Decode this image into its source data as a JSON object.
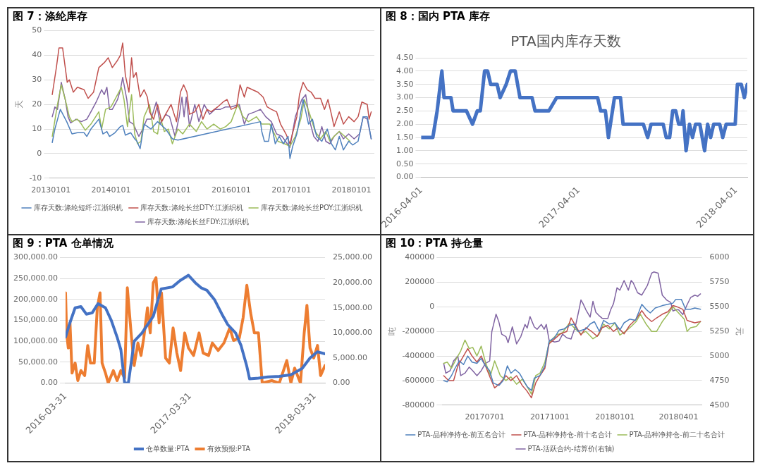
{
  "chart_data": [
    {
      "type": "line",
      "title": "图 7：涤纶库存",
      "ylabel": "天",
      "xlim": [
        "2012-12-24",
        "2018-05-20"
      ],
      "ylim": [
        -10,
        50
      ],
      "yticks": [
        -10,
        0,
        10,
        20,
        30,
        40,
        50
      ],
      "xticks": [
        {
          "value": "2013-01-01",
          "label": "20130101"
        },
        {
          "value": "2014-01-01",
          "label": "20140101"
        },
        {
          "value": "2015-01-01",
          "label": "20150101"
        },
        {
          "value": "2016-01-01",
          "label": "20160101"
        },
        {
          "value": "2017-01-01",
          "label": "20170101"
        },
        {
          "value": "2018-01-01",
          "label": "20180101"
        }
      ],
      "grid": "y",
      "legend": "bottom",
      "marker": "none",
      "line_style": "solid",
      "series": [
        {
          "name": "库存天数:涤纶短纤:江浙织机",
          "color": "#4f81bd",
          "x": [
            "2013-01-09",
            "2013-01-25",
            "2013-02-27",
            "2013-04-07",
            "2013-05-09",
            "2013-06-11",
            "2013-07-21",
            "2013-08-07",
            "2013-09-01",
            "2013-10-19",
            "2013-11-13",
            "2013-12-07",
            "2013-12-23",
            "2014-01-25",
            "2014-02-27",
            "2014-03-13",
            "2014-03-29",
            "2014-05-01",
            "2014-05-25",
            "2014-06-08",
            "2014-06-27",
            "2014-07-21",
            "2014-09-01",
            "2014-10-11",
            "2014-11-29",
            "2015-01-09",
            "2015-02-11",
            "2016-06-27",
            "2016-07-05",
            "2016-07-21",
            "2016-08-15",
            "2016-09-01",
            "2016-09-25",
            "2016-10-19",
            "2016-11-13",
            "2016-12-12",
            "2016-12-23",
            "2017-01-09",
            "2017-02-03",
            "2017-03-13",
            "2017-04-15",
            "2017-05-09",
            "2017-06-03",
            "2017-07-05",
            "2017-08-07",
            "2017-09-01",
            "2017-09-25",
            "2017-10-19",
            "2017-11-13",
            "2017-12-15",
            "2018-01-09",
            "2018-02-10",
            "2018-03-13",
            "2018-04-07",
            "2018-05-01"
          ],
          "values": [
            4.5,
            10,
            18,
            13,
            8,
            8.5,
            8.5,
            7,
            10,
            14,
            8,
            9,
            7,
            8.5,
            11,
            11.5,
            7.5,
            8.5,
            6,
            5,
            2,
            12,
            10,
            13,
            10,
            6,
            5.5,
            13,
            9,
            5,
            5,
            12,
            4,
            7,
            4,
            7,
            -2,
            3,
            8,
            22,
            12,
            14,
            7,
            5,
            10,
            4,
            1.5,
            7,
            1.5,
            5,
            3.5,
            5,
            15,
            15,
            6
          ]
        },
        {
          "name": "库存天数:涤纶长丝DTY:江浙织机",
          "color": "#c0504d",
          "x": [
            "2013-01-09",
            "2013-02-03",
            "2013-02-19",
            "2013-03-13",
            "2013-03-29",
            "2013-04-10",
            "2013-04-23",
            "2013-05-17",
            "2013-06-11",
            "2013-07-21",
            "2013-08-15",
            "2013-09-17",
            "2013-10-19",
            "2013-11-21",
            "2013-12-15",
            "2014-01-09",
            "2014-02-10",
            "2014-02-27",
            "2014-03-13",
            "2014-03-29",
            "2014-04-20",
            "2014-05-06",
            "2014-05-17",
            "2014-06-03",
            "2014-06-27",
            "2014-07-21",
            "2014-08-10",
            "2014-08-23",
            "2014-09-17",
            "2014-10-11",
            "2014-11-05",
            "2014-11-29",
            "2015-01-01",
            "2015-02-03",
            "2015-02-27",
            "2015-03-18",
            "2015-04-07",
            "2015-04-23",
            "2015-05-25",
            "2015-06-19",
            "2015-07-13",
            "2015-08-07",
            "2015-09-01",
            "2015-10-11",
            "2015-11-13",
            "2015-12-07",
            "2016-01-01",
            "2016-02-03",
            "2016-02-24",
            "2016-03-21",
            "2016-04-07",
            "2016-05-09",
            "2016-06-11",
            "2016-07-13",
            "2016-08-07",
            "2016-09-01",
            "2016-10-03",
            "2016-10-27",
            "2016-11-29",
            "2016-12-23",
            "2017-02-03",
            "2017-02-19",
            "2017-03-13",
            "2017-04-07",
            "2017-05-01",
            "2017-05-25",
            "2017-06-27",
            "2017-07-21",
            "2017-08-11",
            "2017-09-01",
            "2017-09-17",
            "2017-10-19",
            "2017-11-13",
            "2017-12-15",
            "2018-01-17",
            "2018-02-10",
            "2018-03-05",
            "2018-04-07",
            "2018-04-18",
            "2018-05-01"
          ],
          "values": [
            24,
            35,
            43,
            43,
            35,
            29,
            30,
            25,
            27,
            26,
            22.5,
            25,
            35,
            37,
            39,
            35,
            38,
            40,
            45,
            32,
            25,
            39,
            31,
            33,
            23,
            26,
            23,
            17,
            14,
            20,
            13,
            16,
            20,
            13,
            25,
            28,
            25,
            16,
            17,
            20,
            14,
            18,
            17,
            19,
            21,
            22,
            18,
            19,
            28,
            23,
            27,
            26,
            25,
            23,
            19,
            18,
            17,
            12,
            8,
            4,
            15,
            24,
            29,
            26,
            25,
            22.5,
            22.5,
            18,
            22,
            16,
            11,
            17,
            12,
            15,
            13,
            15,
            21,
            20,
            14,
            17
          ]
        },
        {
          "name": "库存天数:涤纶长丝POY:江浙织机",
          "color": "#9bbb59",
          "x": [
            "2013-01-09",
            "2013-02-10",
            "2013-03-05",
            "2013-03-29",
            "2013-04-23",
            "2013-05-09",
            "2013-06-11",
            "2013-07-05",
            "2013-07-29",
            "2013-09-01",
            "2013-10-19",
            "2013-11-05",
            "2013-11-29",
            "2014-01-01",
            "2014-01-25",
            "2014-03-05",
            "2014-03-21",
            "2014-04-11",
            "2014-05-06",
            "2014-05-25",
            "2014-06-11",
            "2014-07-02",
            "2014-07-21",
            "2014-08-23",
            "2014-09-17",
            "2014-10-11",
            "2014-10-27",
            "2014-11-21",
            "2014-12-15",
            "2015-01-09",
            "2015-02-11",
            "2015-03-13",
            "2015-04-23",
            "2015-06-03",
            "2015-07-05",
            "2015-08-07",
            "2015-09-17",
            "2015-10-27",
            "2015-11-29",
            "2016-01-01",
            "2016-02-10",
            "2016-03-13",
            "2016-04-15",
            "2016-06-03",
            "2016-07-05",
            "2016-08-23",
            "2016-10-11",
            "2016-11-21",
            "2016-12-23",
            "2017-01-25",
            "2017-02-27",
            "2017-03-21",
            "2017-04-23",
            "2017-05-25",
            "2017-06-27",
            "2017-07-29",
            "2017-08-23",
            "2017-09-17",
            "2017-10-19",
            "2017-11-21",
            "2017-12-23"
          ],
          "values": [
            7,
            20,
            28,
            22,
            15,
            13,
            14,
            12,
            9.5,
            12,
            17,
            10,
            18,
            19,
            22,
            27,
            22,
            11,
            24,
            8,
            4,
            5,
            15,
            20,
            9,
            8,
            15,
            9,
            10,
            4,
            10,
            8,
            12,
            9,
            13,
            10,
            12,
            10,
            11,
            13,
            20,
            15,
            13,
            15,
            12,
            12,
            5,
            4,
            3,
            7,
            14,
            22,
            16,
            9,
            6,
            9,
            5,
            7,
            9,
            7,
            5
          ]
        },
        {
          "name": "库存天数:涤纶长丝FDY:江浙织机",
          "color": "#8064a2",
          "x": [
            "2013-01-09",
            "2013-01-25",
            "2013-02-10",
            "2013-03-05",
            "2013-03-29",
            "2013-04-15",
            "2013-05-01",
            "2013-06-03",
            "2013-07-05",
            "2013-08-07",
            "2013-09-01",
            "2013-10-03",
            "2013-11-05",
            "2013-11-21",
            "2013-12-07",
            "2013-12-23",
            "2014-01-09",
            "2014-02-10",
            "2014-02-27",
            "2014-03-13",
            "2014-04-07",
            "2014-04-23",
            "2014-05-17",
            "2014-06-19",
            "2014-07-13",
            "2014-08-07",
            "2014-09-01",
            "2014-10-03",
            "2014-10-27",
            "2014-11-29",
            "2014-12-23",
            "2015-01-25",
            "2015-02-19",
            "2015-03-08",
            "2015-03-21",
            "2015-04-03",
            "2015-04-23",
            "2015-05-25",
            "2015-06-19",
            "2015-07-21",
            "2015-08-23",
            "2015-09-25",
            "2015-10-27",
            "2015-11-29",
            "2016-01-01",
            "2016-02-19",
            "2016-03-21",
            "2016-04-15",
            "2016-05-25",
            "2016-06-27",
            "2016-07-29",
            "2016-09-01",
            "2016-10-03",
            "2016-11-05",
            "2016-12-23",
            "2017-01-25",
            "2017-03-05",
            "2017-03-29",
            "2017-04-23",
            "2017-05-17",
            "2017-06-11",
            "2017-07-05",
            "2017-07-29",
            "2017-08-23",
            "2017-09-17",
            "2017-10-19",
            "2017-11-13",
            "2017-12-15",
            "2018-01-17",
            "2018-02-19",
            "2018-03-13",
            "2018-04-07",
            "2018-05-01"
          ],
          "values": [
            15,
            19,
            18,
            29,
            22,
            15,
            12.5,
            14,
            13,
            14,
            17,
            21,
            26,
            24,
            27,
            18,
            18,
            22,
            26,
            31,
            22,
            13,
            12,
            7,
            10,
            14,
            14,
            21,
            12,
            16,
            15,
            7,
            15,
            23,
            15,
            23,
            11,
            20,
            13,
            20,
            16,
            18,
            18,
            19,
            19,
            20,
            12,
            16,
            17,
            18,
            15,
            13,
            8,
            7,
            2.5,
            15,
            22,
            24,
            13,
            7,
            5,
            11,
            5,
            4,
            7,
            9,
            6,
            8,
            6,
            8,
            15,
            14,
            6
          ]
        }
      ]
    },
    {
      "type": "line",
      "title": "图 8：国内 PTA 库存",
      "subtitle": "PTA国内库存天数",
      "xlim": [
        "2016-04-01",
        "2018-04-27"
      ],
      "ylim": [
        0,
        4.5
      ],
      "xticks": [
        {
          "value": "2016-04-01",
          "label": "2016-04-01"
        },
        {
          "value": "2017-04-01",
          "label": "2017-04-01"
        },
        {
          "value": "2018-04-01",
          "label": "2018-04-01"
        }
      ],
      "yticks": [
        {
          "value": 0,
          "label": "0.00"
        },
        {
          "value": 0.5,
          "label": "0.50"
        },
        {
          "value": 1,
          "label": "1.00"
        },
        {
          "value": 1.5,
          "label": "1.50"
        },
        {
          "value": 2,
          "label": "2.00"
        },
        {
          "value": 2.5,
          "label": "2.50"
        },
        {
          "value": 3,
          "label": "3.00"
        },
        {
          "value": 3.5,
          "label": "3.50"
        },
        {
          "value": 4,
          "label": "4.00"
        },
        {
          "value": 4.5,
          "label": "4.50"
        }
      ],
      "grid": "y",
      "legend": false,
      "marker": "none",
      "line_style": "solid",
      "series": [
        {
          "color": "#4472c4",
          "x": [
            "2016-04-01",
            "2016-04-28",
            "2016-05-08",
            "2016-05-19",
            "2016-05-24",
            "2016-06-09",
            "2016-06-14",
            "2016-07-15",
            "2016-07-29",
            "2016-08-09",
            "2016-08-16",
            "2016-08-26",
            "2016-09-02",
            "2016-09-09",
            "2016-09-24",
            "2016-10-01",
            "2016-10-15",
            "2016-10-25",
            "2016-11-05",
            "2016-11-16",
            "2016-12-14",
            "2016-12-21",
            "2017-01-22",
            "2017-02-09",
            "2017-05-15",
            "2017-05-22",
            "2017-06-02",
            "2017-06-09",
            "2017-06-23",
            "2017-07-07",
            "2017-07-13",
            "2017-08-29",
            "2017-09-08",
            "2017-09-16",
            "2017-10-14",
            "2017-10-21",
            "2017-10-29",
            "2017-11-05",
            "2017-11-12",
            "2017-11-19",
            "2017-11-26",
            "2017-11-29",
            "2017-12-06",
            "2017-12-14",
            "2017-12-21",
            "2017-12-28",
            "2018-01-07",
            "2018-01-18",
            "2018-01-25",
            "2018-02-01",
            "2018-02-08",
            "2018-02-22",
            "2018-03-01",
            "2018-03-09",
            "2018-03-30",
            "2018-04-04",
            "2018-04-13",
            "2018-04-20",
            "2018-04-27"
          ],
          "values": [
            1.5,
            1.5,
            2.5,
            4,
            3,
            3,
            2.5,
            2.5,
            2,
            2.5,
            2.5,
            4,
            4,
            3.5,
            3.5,
            3,
            3.5,
            4,
            4,
            3,
            3,
            2.5,
            2.5,
            3,
            3,
            2.5,
            2.5,
            1.5,
            3,
            3,
            2,
            2,
            1.5,
            2,
            2,
            1.5,
            1.5,
            2.5,
            2.5,
            2,
            2,
            2.5,
            1,
            2,
            1.5,
            2,
            2,
            1,
            2,
            1.5,
            2,
            2,
            1.5,
            2,
            2,
            3.5,
            3.5,
            3,
            3.5
          ]
        }
      ]
    },
    {
      "type": "line",
      "title": "图 9：PTA 仓单情况",
      "xlim": [
        "2016-03-31",
        "2018-04-30"
      ],
      "ylim": [
        0,
        300000
      ],
      "y2lim": [
        0,
        25000
      ],
      "xticks": [
        {
          "value": "2016-03-31",
          "label": "2016-03-31"
        },
        {
          "value": "2017-03-31",
          "label": "2017-03-31"
        },
        {
          "value": "2018-03-31",
          "label": "2018-03-31"
        }
      ],
      "yticks": [
        {
          "value": 0,
          "label": "0.00"
        },
        {
          "value": 50000,
          "label": "50,000.00"
        },
        {
          "value": 100000,
          "label": "100,000.00"
        },
        {
          "value": 150000,
          "label": "150,000.00"
        },
        {
          "value": 200000,
          "label": "200,000.00"
        },
        {
          "value": 250000,
          "label": "250,000.00"
        },
        {
          "value": 300000,
          "label": "300,000.00"
        }
      ],
      "y2ticks": [
        {
          "value": 0,
          "label": "0.00"
        },
        {
          "value": 5000,
          "label": "5,000.00"
        },
        {
          "value": 10000,
          "label": "10,000.00"
        },
        {
          "value": 15000,
          "label": "15,000.00"
        },
        {
          "value": 20000,
          "label": "20,000.00"
        },
        {
          "value": 25000,
          "label": "25,000.00"
        }
      ],
      "grid": "y",
      "legend": "bottom",
      "marker": "none",
      "line_style": "solid",
      "series": [
        {
          "name": "仓单数量:PTA",
          "color": "#4472c4",
          "x": [
            "2016-03-31",
            "2016-04-11",
            "2016-04-28",
            "2016-05-15",
            "2016-05-31",
            "2016-06-17",
            "2016-07-04",
            "2016-07-26",
            "2016-08-12",
            "2016-08-29",
            "2016-09-09",
            "2016-09-20",
            "2016-10-01",
            "2016-10-18",
            "2016-11-10",
            "2016-12-13",
            "2017-01-05",
            "2017-02-07",
            "2017-03-01",
            "2017-03-26",
            "2017-04-15",
            "2017-05-02",
            "2017-05-19",
            "2017-06-10",
            "2017-07-02",
            "2017-07-19",
            "2017-08-11",
            "2017-08-27",
            "2017-09-13",
            "2017-09-21",
            "2017-10-17",
            "2017-11-14",
            "2017-12-17",
            "2018-01-20",
            "2018-02-22",
            "2018-03-17",
            "2018-04-08",
            "2018-04-30"
          ],
          "values": [
            110000,
            140000,
            180000,
            183000,
            165000,
            168000,
            190000,
            180000,
            150000,
            110000,
            80000,
            0,
            0,
            100000,
            120000,
            160000,
            225000,
            230000,
            245000,
            258000,
            240000,
            228000,
            222000,
            200000,
            165000,
            140000,
            120000,
            90000,
            40000,
            10000,
            12000,
            15000,
            16000,
            20000,
            35000,
            60000,
            75000,
            70000
          ]
        },
        {
          "name": "有效预报:PTA",
          "color": "#ed7d31",
          "axis": "y2",
          "x": [
            "2016-03-31",
            "2016-04-03",
            "2016-04-08",
            "2016-04-13",
            "2016-04-19",
            "2016-04-28",
            "2016-05-06",
            "2016-05-15",
            "2016-05-26",
            "2016-06-04",
            "2016-06-12",
            "2016-06-23",
            "2016-07-02",
            "2016-07-10",
            "2016-07-16",
            "2016-07-26",
            "2016-08-03",
            "2016-08-18",
            "2016-08-29",
            "2016-09-09",
            "2016-09-20",
            "2016-09-28",
            "2016-10-09",
            "2016-10-18",
            "2016-10-29",
            "2016-11-07",
            "2016-11-15",
            "2016-11-26",
            "2016-12-04",
            "2016-12-13",
            "2016-12-21",
            "2016-12-30",
            "2017-01-06",
            "2017-01-18",
            "2017-01-29",
            "2017-02-09",
            "2017-02-20",
            "2017-03-03",
            "2017-03-15",
            "2017-03-26",
            "2017-04-10",
            "2017-04-26",
            "2017-05-08",
            "2017-05-24",
            "2017-06-04",
            "2017-06-21",
            "2017-07-08",
            "2017-07-25",
            "2017-08-05",
            "2017-08-22",
            "2017-09-02",
            "2017-09-13",
            "2017-09-24",
            "2017-10-05",
            "2017-10-17",
            "2017-10-28",
            "2017-11-25",
            "2017-12-17",
            "2018-01-08",
            "2018-01-20",
            "2018-01-31",
            "2018-02-17",
            "2018-02-28",
            "2018-03-08",
            "2018-03-17",
            "2018-03-28",
            "2018-04-08",
            "2018-04-17",
            "2018-04-30"
          ],
          "values": [
            18000,
            10000,
            7000,
            12000,
            2000,
            4000,
            500,
            2500,
            1500,
            7500,
            4000,
            4000,
            15000,
            18000,
            4000,
            2000,
            0,
            2500,
            500,
            2500,
            1000,
            19000,
            10000,
            3500,
            8000,
            5500,
            9000,
            15000,
            10000,
            20000,
            21000,
            12000,
            18000,
            5000,
            4000,
            11000,
            6000,
            2500,
            10000,
            7000,
            5500,
            10000,
            6000,
            5500,
            8000,
            6500,
            8000,
            11000,
            8500,
            9000,
            13000,
            19500,
            14000,
            10000,
            10000,
            0,
            500,
            0,
            4500,
            0,
            3000,
            0,
            10000,
            15500,
            7000,
            5000,
            7500,
            1500,
            3500
          ]
        }
      ]
    },
    {
      "type": "line",
      "title": "图 10：PTA 持仓量",
      "ylabel": "吨",
      "y2label": "元",
      "xlim": [
        "2017-05-02",
        "2018-05-04"
      ],
      "ylim": [
        -800000,
        400000
      ],
      "y2lim": [
        4500,
        6000
      ],
      "xticks": [
        {
          "value": "2017-07-01",
          "label": "20170701"
        },
        {
          "value": "2017-10-01",
          "label": "20171001"
        },
        {
          "value": "2018-01-01",
          "label": "20180101"
        },
        {
          "value": "2018-04-01",
          "label": "20180401"
        }
      ],
      "yticks": [
        -800000,
        -600000,
        -400000,
        -200000,
        0,
        200000,
        400000
      ],
      "y2ticks": [
        4500,
        4750,
        5000,
        5250,
        5500,
        5750,
        6000
      ],
      "grid": "y",
      "legend": "bottom",
      "marker": "none",
      "line_style": "solid",
      "series": [
        {
          "name": "PTA-品种净持仓-前五名合计",
          "color": "#4f81bd",
          "x": [
            "2017-05-04",
            "2017-05-09",
            "2017-05-15",
            "2017-05-20",
            "2017-05-26",
            "2017-06-01",
            "2017-06-07",
            "2017-06-13",
            "2017-06-20",
            "2017-06-26",
            "2017-07-02",
            "2017-07-08",
            "2017-07-13",
            "2017-07-21",
            "2017-07-27",
            "2017-08-02",
            "2017-08-07",
            "2017-08-13",
            "2017-08-19",
            "2017-08-25",
            "2017-08-30",
            "2017-09-05",
            "2017-09-09",
            "2017-09-17",
            "2017-09-24",
            "2017-09-30",
            "2017-10-08",
            "2017-10-14",
            "2017-10-21",
            "2017-10-29",
            "2017-11-04",
            "2017-11-10",
            "2017-11-15",
            "2017-11-21",
            "2017-11-27",
            "2017-12-03",
            "2017-12-10",
            "2017-12-16",
            "2017-12-24",
            "2018-01-01",
            "2018-01-08",
            "2018-01-14",
            "2018-01-22",
            "2018-01-30",
            "2018-02-04",
            "2018-02-08",
            "2018-02-14",
            "2018-02-20",
            "2018-02-27",
            "2018-03-09",
            "2018-03-17",
            "2018-03-24",
            "2018-03-28",
            "2018-04-05",
            "2018-04-11",
            "2018-04-18",
            "2018-04-24",
            "2018-05-02"
          ],
          "values": [
            -600000,
            -610000,
            -560000,
            -500000,
            -440000,
            -470000,
            -400000,
            -450000,
            -460000,
            -420000,
            -480000,
            -520000,
            -620000,
            -640000,
            -600000,
            -480000,
            -540000,
            -510000,
            -540000,
            -600000,
            -650000,
            -680000,
            -580000,
            -560000,
            -480000,
            -280000,
            -250000,
            -190000,
            -180000,
            -150000,
            -140000,
            -200000,
            -190000,
            -180000,
            -140000,
            -120000,
            -200000,
            -110000,
            -140000,
            -130000,
            -190000,
            -130000,
            -100000,
            -110000,
            -40000,
            20000,
            -20000,
            -50000,
            -10000,
            10000,
            20000,
            30000,
            60000,
            60000,
            -20000,
            -20000,
            -10000,
            -20000
          ]
        },
        {
          "name": "PTA-品种净持仓-前十名合计",
          "color": "#c0504d",
          "x": [
            "2017-05-04",
            "2017-05-11",
            "2017-05-18",
            "2017-05-24",
            "2017-06-01",
            "2017-06-07",
            "2017-06-13",
            "2017-06-20",
            "2017-06-26",
            "2017-07-02",
            "2017-07-09",
            "2017-07-15",
            "2017-07-23",
            "2017-07-31",
            "2017-08-07",
            "2017-08-15",
            "2017-08-23",
            "2017-08-29",
            "2017-09-05",
            "2017-09-11",
            "2017-09-17",
            "2017-09-24",
            "2017-09-30",
            "2017-10-08",
            "2017-10-16",
            "2017-10-25",
            "2017-10-31",
            "2017-11-06",
            "2017-11-14",
            "2017-11-21",
            "2017-11-29",
            "2017-12-07",
            "2017-12-14",
            "2017-12-22",
            "2017-12-30",
            "2018-01-06",
            "2018-01-14",
            "2018-01-22",
            "2018-01-31",
            "2018-02-08",
            "2018-02-14",
            "2018-02-22",
            "2018-03-01",
            "2018-03-09",
            "2018-03-17",
            "2018-03-24",
            "2018-03-30",
            "2018-04-07",
            "2018-04-13",
            "2018-04-18",
            "2018-04-24",
            "2018-05-02"
          ],
          "values": [
            -560000,
            -600000,
            -600000,
            -480000,
            -400000,
            -340000,
            -400000,
            -450000,
            -400000,
            -480000,
            -580000,
            -660000,
            -620000,
            -560000,
            -600000,
            -560000,
            -640000,
            -680000,
            -740000,
            -620000,
            -560000,
            -500000,
            -300000,
            -260000,
            -220000,
            -200000,
            -90000,
            -150000,
            -230000,
            -170000,
            -200000,
            -240000,
            -170000,
            -150000,
            -200000,
            -170000,
            -220000,
            -150000,
            -100000,
            -30000,
            -80000,
            -120000,
            -90000,
            -60000,
            -40000,
            10000,
            0,
            -20000,
            -110000,
            -120000,
            -130000,
            -120000
          ]
        },
        {
          "name": "PTA-品种净持仓-前二十名合计",
          "color": "#9bbb59",
          "x": [
            "2017-05-04",
            "2017-05-09",
            "2017-05-15",
            "2017-05-22",
            "2017-05-28",
            "2017-06-03",
            "2017-06-09",
            "2017-06-14",
            "2017-06-20",
            "2017-06-26",
            "2017-07-02",
            "2017-07-09",
            "2017-07-15",
            "2017-07-23",
            "2017-07-31",
            "2017-08-07",
            "2017-08-15",
            "2017-08-23",
            "2017-08-29",
            "2017-09-05",
            "2017-09-11",
            "2017-09-17",
            "2017-09-24",
            "2017-09-30",
            "2017-10-10",
            "2017-10-19",
            "2017-10-29",
            "2017-11-06",
            "2017-11-14",
            "2017-11-21",
            "2017-12-01",
            "2017-12-09",
            "2017-12-16",
            "2017-12-24",
            "2018-01-01",
            "2018-01-08",
            "2018-01-16",
            "2018-01-24",
            "2018-01-31",
            "2018-02-06",
            "2018-02-14",
            "2018-02-22",
            "2018-03-01",
            "2018-03-09",
            "2018-03-17",
            "2018-03-24",
            "2018-04-01",
            "2018-04-09",
            "2018-04-13",
            "2018-04-18",
            "2018-04-26",
            "2018-05-02"
          ],
          "values": [
            -460000,
            -450000,
            -500000,
            -420000,
            -360000,
            -270000,
            -340000,
            -330000,
            -400000,
            -320000,
            -450000,
            -560000,
            -440000,
            -560000,
            -600000,
            -570000,
            -630000,
            -590000,
            -640000,
            -710000,
            -560000,
            -540000,
            -450000,
            -290000,
            -230000,
            -210000,
            -130000,
            -180000,
            -220000,
            -200000,
            -260000,
            -230000,
            -140000,
            -180000,
            -130000,
            -230000,
            -200000,
            -160000,
            -120000,
            -60000,
            -140000,
            -200000,
            -200000,
            -120000,
            -60000,
            0,
            -50000,
            -100000,
            -200000,
            -170000,
            -160000,
            -120000
          ]
        },
        {
          "name": "PTA-活跃合约-结算价(右轴)",
          "color": "#8064a2",
          "axis": "y2",
          "x": [
            "2017-05-04",
            "2017-05-07",
            "2017-05-13",
            "2017-05-18",
            "2017-05-24",
            "2017-05-28",
            "2017-06-03",
            "2017-06-09",
            "2017-06-14",
            "2017-06-20",
            "2017-06-26",
            "2017-07-02",
            "2017-07-08",
            "2017-07-11",
            "2017-07-17",
            "2017-07-21",
            "2017-07-25",
            "2017-07-31",
            "2017-08-03",
            "2017-08-09",
            "2017-08-15",
            "2017-08-21",
            "2017-08-27",
            "2017-08-30",
            "2017-09-03",
            "2017-09-09",
            "2017-09-13",
            "2017-09-19",
            "2017-09-23",
            "2017-09-26",
            "2017-09-30",
            "2017-10-08",
            "2017-10-14",
            "2017-10-19",
            "2017-10-25",
            "2017-10-31",
            "2017-11-06",
            "2017-11-12",
            "2017-11-14",
            "2017-11-17",
            "2017-11-21",
            "2017-11-27",
            "2017-12-01",
            "2017-12-05",
            "2017-12-10",
            "2017-12-14",
            "2017-12-22",
            "2017-12-26",
            "2017-12-30",
            "2018-01-04",
            "2018-01-08",
            "2018-01-14",
            "2018-01-20",
            "2018-01-24",
            "2018-01-27",
            "2018-02-02",
            "2018-02-08",
            "2018-02-16",
            "2018-02-22",
            "2018-02-25",
            "2018-03-03",
            "2018-03-09",
            "2018-03-15",
            "2018-03-21",
            "2018-03-24",
            "2018-03-28",
            "2018-04-01",
            "2018-04-07",
            "2018-04-13",
            "2018-04-18",
            "2018-04-24",
            "2018-04-28",
            "2018-05-02"
          ],
          "values": [
            4924,
            4825,
            4850,
            4950,
            5000,
            4800,
            4825,
            4887,
            4850,
            4800,
            4850,
            4924,
            4950,
            5247,
            5425,
            5346,
            5222,
            5197,
            5135,
            5296,
            5123,
            5197,
            5321,
            5284,
            5401,
            5296,
            5272,
            5321,
            5272,
            5321,
            5160,
            5142,
            5152,
            5222,
            5185,
            5172,
            5296,
            5495,
            5570,
            5532,
            5470,
            5396,
            5557,
            5445,
            5408,
            5383,
            5383,
            5470,
            5532,
            5694,
            5669,
            5768,
            5669,
            5768,
            5743,
            5644,
            5619,
            5719,
            5843,
            5855,
            5843,
            5619,
            5570,
            5545,
            5458,
            5470,
            5470,
            5421,
            5520,
            5594,
            5619,
            5607,
            5632
          ]
        }
      ]
    }
  ]
}
